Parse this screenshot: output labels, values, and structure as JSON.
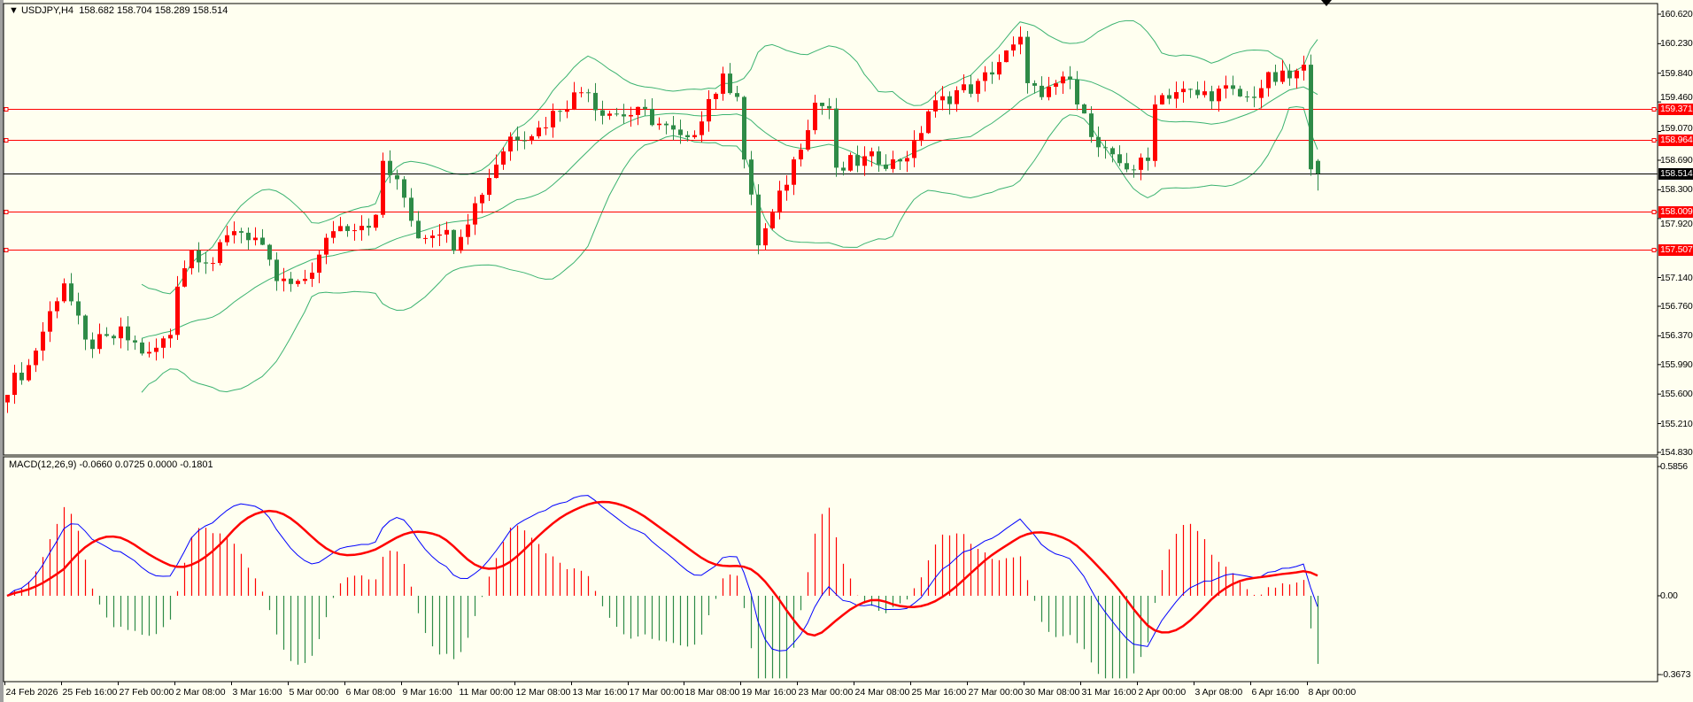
{
  "header": {
    "symbol": "USDJPY,H4",
    "ohlc": "158.682 158.704 158.289 158.514"
  },
  "macd_header": {
    "label": "MACD(12,26,9)",
    "values": "-0.0660 0.0725 0.0000 -0.1801"
  },
  "colors": {
    "background": "#fffff0",
    "bull": "#ff0000",
    "bear": "#2e8b47",
    "bands": "#3cb371",
    "macd_main": "#0000ff",
    "macd_signal": "#ff0000",
    "hline": "#ff0000",
    "price_line": "#000000"
  },
  "chart_data": [
    {
      "type": "candlestick",
      "title": "USDJPY,H4",
      "ylim": [
        154.83,
        160.62
      ],
      "y_ticks": [
        "160.620",
        "160.230",
        "159.840",
        "159.460",
        "159.070",
        "158.690",
        "158.300",
        "157.920",
        "157.140",
        "156.760",
        "156.370",
        "155.990",
        "155.600",
        "155.210",
        "154.830"
      ],
      "x_ticks": [
        "24 Feb 2026",
        "25 Feb 16:00",
        "27 Feb 00:00",
        "2 Mar 08:00",
        "3 Mar 16:00",
        "5 Mar 00:00",
        "6 Mar 08:00",
        "9 Mar 16:00",
        "11 Mar 00:00",
        "12 Mar 08:00",
        "13 Mar 16:00",
        "17 Mar 00:00",
        "18 Mar 08:00",
        "19 Mar 16:00",
        "23 Mar 00:00",
        "24 Mar 08:00",
        "25 Mar 16:00",
        "27 Mar 00:00",
        "30 Mar 08:00",
        "31 Mar 16:00",
        "2 Apr 00:00",
        "3 Apr 08:00",
        "6 Apr 16:00",
        "8 Apr 00:00"
      ],
      "bar_count": 186,
      "close_path": [
        [
          0,
          155.7
        ],
        [
          3,
          155.97
        ],
        [
          7,
          156.9
        ],
        [
          8,
          157.1
        ],
        [
          11,
          156.25
        ],
        [
          14,
          156.3
        ],
        [
          16,
          156.4
        ],
        [
          20,
          156.1
        ],
        [
          23,
          156.4
        ],
        [
          24,
          157.1
        ],
        [
          26,
          157.5
        ],
        [
          29,
          157.35
        ],
        [
          32,
          157.8
        ],
        [
          35,
          157.65
        ],
        [
          38,
          157.1
        ],
        [
          41,
          157.0
        ],
        [
          44,
          157.4
        ],
        [
          46,
          157.8
        ],
        [
          49,
          157.85
        ],
        [
          52,
          157.9
        ],
        [
          53,
          158.67
        ],
        [
          56,
          158.2
        ],
        [
          58,
          157.7
        ],
        [
          61,
          157.8
        ],
        [
          63,
          157.6
        ],
        [
          66,
          158.1
        ],
        [
          69,
          158.67
        ],
        [
          71,
          159.0
        ],
        [
          75,
          159.1
        ],
        [
          78,
          159.4
        ],
        [
          82,
          159.67
        ],
        [
          83,
          159.4
        ],
        [
          86,
          159.3
        ],
        [
          90,
          159.3
        ],
        [
          93,
          159.1
        ],
        [
          96,
          158.9
        ],
        [
          99,
          159.5
        ],
        [
          101,
          159.74
        ],
        [
          103,
          159.6
        ],
        [
          104,
          158.7
        ],
        [
          106,
          157.6
        ],
        [
          108,
          157.95
        ],
        [
          111,
          158.67
        ],
        [
          114,
          159.45
        ],
        [
          116,
          159.38
        ],
        [
          117,
          158.5
        ],
        [
          119,
          158.65
        ],
        [
          123,
          158.72
        ],
        [
          125,
          158.65
        ],
        [
          128,
          158.85
        ],
        [
          130,
          159.35
        ],
        [
          134,
          159.6
        ],
        [
          137,
          159.67
        ],
        [
          140,
          160.0
        ],
        [
          143,
          160.24
        ],
        [
          144,
          159.8
        ],
        [
          146,
          159.45
        ],
        [
          149,
          159.8
        ],
        [
          152,
          159.4
        ],
        [
          153,
          158.95
        ],
        [
          156,
          158.67
        ],
        [
          159,
          158.6
        ],
        [
          161,
          158.67
        ],
        [
          162,
          159.52
        ],
        [
          165,
          159.6
        ],
        [
          168,
          159.55
        ],
        [
          172,
          159.6
        ],
        [
          175,
          159.5
        ],
        [
          178,
          159.75
        ],
        [
          181,
          159.78
        ],
        [
          183,
          159.88
        ],
        [
          184,
          158.68
        ]
      ],
      "last_bar": {
        "open": 158.682,
        "high": 158.704,
        "low": 158.289,
        "close": 158.514
      },
      "horizontal_lines": [
        {
          "price": 159.371,
          "label": "159.371"
        },
        {
          "price": 158.964,
          "label": "158.964"
        },
        {
          "price": 158.009,
          "label": "158.009"
        },
        {
          "price": 157.507,
          "label": "157.507"
        }
      ],
      "current_price": {
        "price": 158.514,
        "label": "158.514"
      },
      "indicators": {
        "bollinger": {
          "period": 20,
          "deviation": 2
        }
      }
    },
    {
      "type": "macd",
      "title": "MACD(12,26,9)",
      "ylim": [
        -0.3673,
        0.5856
      ],
      "y_ticks": [
        "0.5856",
        "0.00",
        "-0.3673"
      ],
      "params": {
        "fast": 12,
        "slow": 26,
        "signal": 9
      }
    }
  ]
}
